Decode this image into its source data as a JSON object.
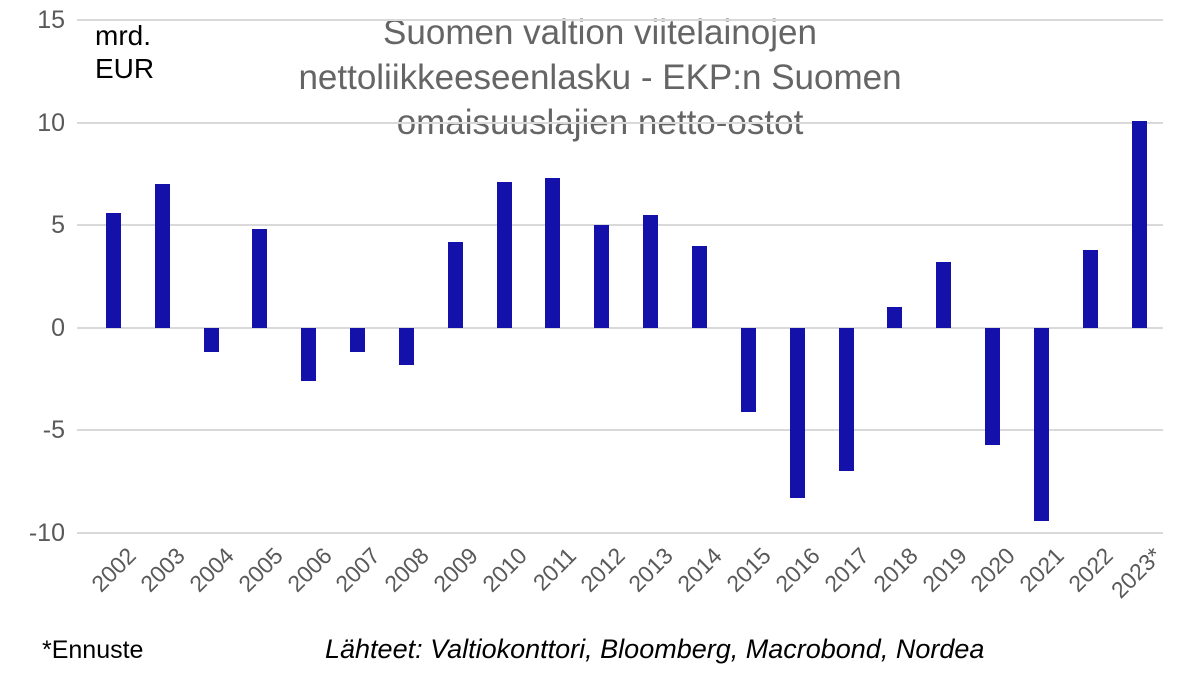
{
  "chart_data": {
    "type": "bar",
    "title": "Suomen valtion viitelainojen nettoliikkeeseenlasku - EKP:n Suomen omaisuuslajien netto-ostot",
    "title_lines": [
      "Suomen valtion viitelainojen",
      "nettoliikkeeseenlasku - EKP:n Suomen",
      "omaisuuslajien netto-ostot"
    ],
    "ylabel": "mrd. EUR",
    "unit_lines": [
      "mrd.",
      "EUR"
    ],
    "categories": [
      "2002",
      "2003",
      "2004",
      "2005",
      "2006",
      "2007",
      "2008",
      "2009",
      "2010",
      "2011",
      "2012",
      "2013",
      "2014",
      "2015",
      "2016",
      "2017",
      "2018",
      "2019",
      "2020",
      "2021",
      "2022",
      "2023*"
    ],
    "values": [
      5.6,
      7.0,
      -1.2,
      4.8,
      -2.6,
      -1.2,
      -1.8,
      4.2,
      7.1,
      7.3,
      5.0,
      5.5,
      4.0,
      -4.1,
      -8.3,
      -7.0,
      1.0,
      3.2,
      -5.7,
      -9.4,
      3.8,
      10.1
    ],
    "ylim": [
      -10,
      15
    ],
    "yticks": [
      15,
      10,
      5,
      0,
      -5,
      -10
    ],
    "grid": true,
    "legend": "none",
    "footnote": "*Ennuste",
    "sources": "Lähteet: Valtiokonttori, Bloomberg, Macrobond, Nordea",
    "colors": {
      "bar": "#1410AA",
      "gridline": "#D9D9D9",
      "title_text": "#656565",
      "tick_text": "#595959",
      "unit_text": "#000000"
    }
  }
}
